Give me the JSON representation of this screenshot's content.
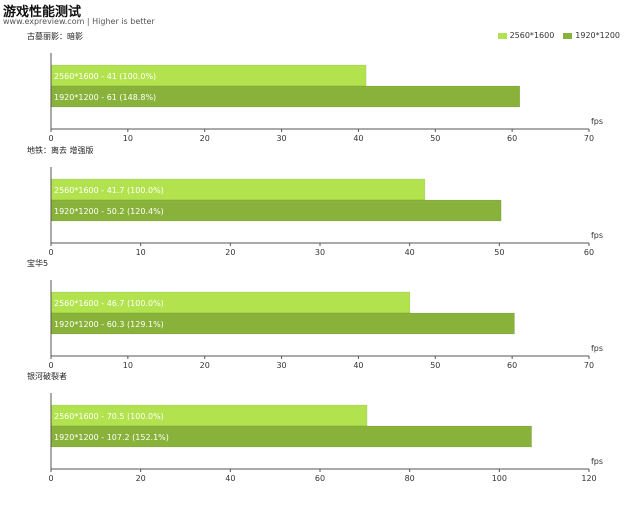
{
  "header": {
    "title": "游戏性能测试",
    "subtitle": "www.expreview.com | Higher is better"
  },
  "legend": [
    {
      "label": "2560*1600",
      "color": "#b2e34e"
    },
    {
      "label": "1920*1200",
      "color": "#88b23a"
    }
  ],
  "chart_data": [
    {
      "type": "bar",
      "orientation": "horizontal",
      "title": "古墓丽影：暗影",
      "xlabel": "fps",
      "xlim": [
        0,
        70
      ],
      "xticks": [
        0,
        10,
        20,
        30,
        40,
        50,
        60,
        70
      ],
      "grid": false,
      "series": [
        {
          "name": "2560*1600",
          "value": 41,
          "label": "2560*1600  -  41 (100.0%)",
          "color": "#b2e34e"
        },
        {
          "name": "1920*1200",
          "value": 61,
          "label": "1920*1200  -  61 (148.8%)",
          "color": "#88b23a"
        }
      ]
    },
    {
      "type": "bar",
      "orientation": "horizontal",
      "title": "地铁：离去 增强版",
      "xlabel": "fps",
      "xlim": [
        0,
        60
      ],
      "xticks": [
        0,
        10,
        20,
        30,
        40,
        50,
        60
      ],
      "grid": false,
      "series": [
        {
          "name": "2560*1600",
          "value": 41.7,
          "label": "2560*1600  -  41.7 (100.0%)",
          "color": "#b2e34e"
        },
        {
          "name": "1920*1200",
          "value": 50.2,
          "label": "1920*1200  -  50.2 (120.4%)",
          "color": "#88b23a"
        }
      ]
    },
    {
      "type": "bar",
      "orientation": "horizontal",
      "title": "宝华5",
      "xlabel": "fps",
      "xlim": [
        0,
        70
      ],
      "xticks": [
        0,
        10,
        20,
        30,
        40,
        50,
        60,
        70
      ],
      "grid": false,
      "series": [
        {
          "name": "2560*1600",
          "value": 46.7,
          "label": "2560*1600  -  46.7 (100.0%)",
          "color": "#b2e34e"
        },
        {
          "name": "1920*1200",
          "value": 60.3,
          "label": "1920*1200  -  60.3 (129.1%)",
          "color": "#88b23a"
        }
      ]
    },
    {
      "type": "bar",
      "orientation": "horizontal",
      "title": "银河破裂者",
      "xlabel": "fps",
      "xlim": [
        0,
        120
      ],
      "xticks": [
        0,
        20,
        40,
        60,
        80,
        100,
        120
      ],
      "grid": false,
      "series": [
        {
          "name": "2560*1600",
          "value": 70.5,
          "label": "2560*1600  -  70.5 (100.0%)",
          "color": "#b2e34e"
        },
        {
          "name": "1920*1200",
          "value": 107.2,
          "label": "1920*1200  -  107.2 (152.1%)",
          "color": "#88b23a"
        }
      ]
    }
  ]
}
